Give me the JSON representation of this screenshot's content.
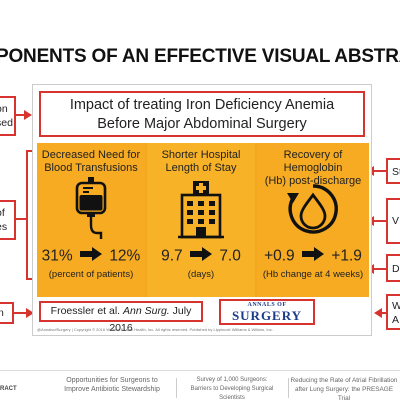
{
  "page_title": "PONENTS OF AN EFFECTIVE VISUAL ABSTRA",
  "left_callouts": [
    {
      "lines": [
        "on",
        "sed"
      ]
    },
    {
      "lines": [
        "of",
        "es"
      ]
    },
    {
      "lines": [
        "n"
      ]
    }
  ],
  "right_callouts": [
    {
      "lines": [
        "St"
      ]
    },
    {
      "lines": [
        "V"
      ]
    },
    {
      "lines": [
        "D"
      ]
    },
    {
      "lines": [
        "W",
        "A"
      ]
    }
  ],
  "abstract": {
    "title_lines": [
      "Impact of treating Iron Deficiency Anemia",
      "Before Major Abdominal Surgery"
    ],
    "panels": [
      {
        "heading_lines": [
          "Decreased Need for",
          "Blood Transfusions"
        ],
        "icon": "blood-bag-icon",
        "value_before": "31%",
        "value_after": "12%",
        "sub": "(percent of patients)"
      },
      {
        "heading_lines": [
          "Shorter Hospital",
          "Length of Stay"
        ],
        "icon": "hospital-building-icon",
        "value_before": "9.7",
        "value_after": "7.0",
        "sub": "(days)"
      },
      {
        "heading_lines": [
          "Recovery of Hemoglobin",
          "(Hb) post-discharge"
        ],
        "icon": "recovery-drop-icon",
        "value_before": "+0.9",
        "value_after": "+1.9",
        "sub": "(Hb change at 4 weeks)"
      }
    ],
    "citation_author": "Froessler et al.",
    "citation_journal": "Ann Surg.",
    "citation_date": "July 2016",
    "journal_logo_small": "ANNALS OF",
    "journal_logo_big": "SURGERY",
    "footer_text": "@AnnalsofSurgery | Copyright © 2016 Wolters Kluwer Health, Inc. All rights reserved. Published by Lippincott Williams & Wilkins, Inc."
  },
  "bottom": {
    "left_label": "RACT",
    "items": [
      {
        "lines": [
          "Opportunities for Surgeons to",
          "Improve Antibiotic Stewardship"
        ]
      },
      {
        "lines": [
          "Survey of 1,000 Surgeons:",
          "Barriers to Developing Surgical Scientists"
        ]
      },
      {
        "lines": [
          "Reducing the Rate of Atrial Fibrillation",
          "after Lung Surgery: the PRESAGE Trial"
        ]
      }
    ]
  },
  "colors": {
    "accent_red": "#d8342f",
    "panel_orange": "#f6ab22",
    "journal_blue": "#1a3a8a"
  }
}
